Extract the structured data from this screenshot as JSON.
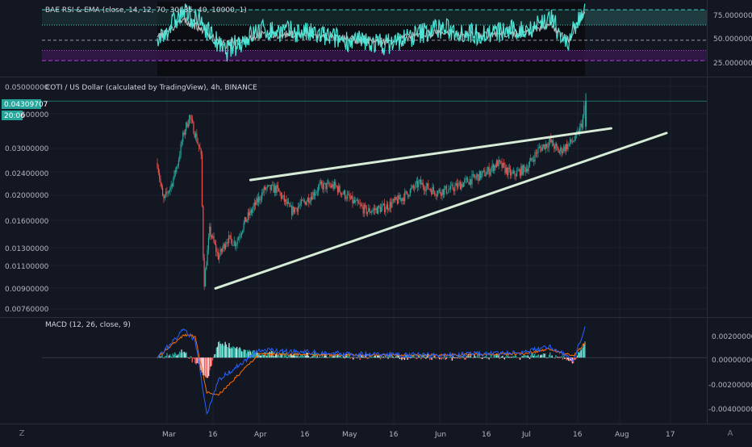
{
  "colors": {
    "background": "#131722",
    "grid": "#1e222d",
    "up": "#26a69a",
    "down": "#ef5350",
    "rsi_line": "#4ee4d6",
    "rsi_ema": "#e8e8e8",
    "rsi_upper_band": "#3bd1c2",
    "rsi_lower_band": "#b040d8",
    "macd_line": "#2962ff",
    "signal_line": "#ff6d00",
    "trendline": "#d6ecd6",
    "price_label_bg": "#26a69a"
  },
  "rsi_pane": {
    "title": "BAE RSI & EMA (close, 14, 12, 70, 30, 35, 40, 10000, 1)",
    "y_ticks": [
      "75.00000000",
      "50.00000000",
      "25.00000000"
    ],
    "levels": [
      80,
      65,
      50,
      40,
      30
    ]
  },
  "price_pane": {
    "title": "COTI / US Dollar (calculated by TradingView), 4h, BINANCE",
    "y_ticks": [
      "0.05000000",
      "0.03600000",
      "0.03000000",
      "0.02400000",
      "0.02000000",
      "0.01600000",
      "0.01300000",
      "0.01100000",
      "0.00900000",
      "0.00760000"
    ],
    "last_price": "0.04309707",
    "countdown": "20:06"
  },
  "macd_pane": {
    "title": "MACD (12, 26, close, 9)",
    "y_ticks": [
      "0.00200000",
      "0.00000000",
      "-0.00200000",
      "-0.00400000"
    ]
  },
  "x_axis": {
    "labels": [
      "Mar",
      "16",
      "Apr",
      "16",
      "May",
      "16",
      "Jun",
      "16",
      "Jul",
      "16",
      "Aug",
      "17"
    ]
  },
  "toolbar": {
    "zoom_icon": "Z",
    "auto_scale": "A"
  },
  "chart_data": [
    {
      "type": "candlestick",
      "title": "COTI / US Dollar (calculated by TradingView), 4h, BINANCE",
      "scale": "log",
      "ylim": [
        0.0074,
        0.052
      ],
      "x_range": [
        "2020-02-26",
        "2020-08-19"
      ],
      "price_path": [
        [
          "2020-02-26",
          0.026
        ],
        [
          "2020-02-28",
          0.019
        ],
        [
          "2020-03-02",
          0.022
        ],
        [
          "2020-03-04",
          0.026
        ],
        [
          "2020-03-06",
          0.033
        ],
        [
          "2020-03-08",
          0.038
        ],
        [
          "2020-03-10",
          0.033
        ],
        [
          "2020-03-12",
          0.028
        ],
        [
          "2020-03-13",
          0.0095
        ],
        [
          "2020-03-15",
          0.015
        ],
        [
          "2020-03-18",
          0.012
        ],
        [
          "2020-03-21",
          0.014
        ],
        [
          "2020-03-24",
          0.0135
        ],
        [
          "2020-03-27",
          0.016
        ],
        [
          "2020-03-30",
          0.018
        ],
        [
          "2020-04-03",
          0.021
        ],
        [
          "2020-04-07",
          0.021
        ],
        [
          "2020-04-12",
          0.0175
        ],
        [
          "2020-04-17",
          0.019
        ],
        [
          "2020-04-22",
          0.0215
        ],
        [
          "2020-04-27",
          0.0215
        ],
        [
          "2020-05-03",
          0.019
        ],
        [
          "2020-05-08",
          0.0175
        ],
        [
          "2020-05-14",
          0.018
        ],
        [
          "2020-05-20",
          0.0195
        ],
        [
          "2020-05-26",
          0.022
        ],
        [
          "2020-06-01",
          0.0205
        ],
        [
          "2020-06-06",
          0.021
        ],
        [
          "2020-06-12",
          0.0225
        ],
        [
          "2020-06-18",
          0.024
        ],
        [
          "2020-06-22",
          0.026
        ],
        [
          "2020-06-27",
          0.0235
        ],
        [
          "2020-07-02",
          0.025
        ],
        [
          "2020-07-06",
          0.029
        ],
        [
          "2020-07-10",
          0.031
        ],
        [
          "2020-07-13",
          0.0285
        ],
        [
          "2020-07-16",
          0.03
        ],
        [
          "2020-07-19",
          0.032
        ],
        [
          "2020-07-21",
          0.036
        ],
        [
          "2020-07-22",
          0.04309707
        ]
      ],
      "annotations": [
        {
          "type": "trendline",
          "from": [
            "2020-03-29",
            0.0226
          ],
          "to": [
            "2020-07-31",
            0.0345
          ]
        },
        {
          "type": "trendline",
          "from": [
            "2020-03-17",
            0.0093
          ],
          "to": [
            "2020-08-19",
            0.0332
          ]
        }
      ]
    },
    {
      "type": "line",
      "title": "BAE RSI & EMA (close, 14, 12, 70, 30, 35, 40, 10000, 1)",
      "ylim": [
        15,
        88
      ],
      "x": [
        "2020-02-26",
        "2020-03-06",
        "2020-03-13",
        "2020-03-20",
        "2020-04-01",
        "2020-04-15",
        "2020-05-01",
        "2020-05-15",
        "2020-06-01",
        "2020-06-15",
        "2020-07-01",
        "2020-07-10",
        "2020-07-16",
        "2020-07-22"
      ],
      "series": [
        {
          "values": [
            50,
            78,
            65,
            38,
            60,
            58,
            50,
            46,
            62,
            56,
            60,
            72,
            45,
            84
          ]
        },
        {
          "values": [
            52,
            70,
            60,
            45,
            55,
            56,
            51,
            49,
            58,
            55,
            57,
            66,
            50,
            76
          ]
        }
      ]
    },
    {
      "type": "line",
      "title": "MACD (12, 26, close, 9)",
      "ylim": [
        -0.0051,
        0.0028
      ],
      "x": [
        "2020-02-26",
        "2020-03-06",
        "2020-03-10",
        "2020-03-14",
        "2020-03-18",
        "2020-04-01",
        "2020-05-01",
        "2020-06-01",
        "2020-07-01",
        "2020-07-10",
        "2020-07-18",
        "2020-07-22"
      ],
      "series": [
        {
          "values": [
            0.0,
            0.0022,
            0.0014,
            -0.0045,
            -0.0018,
            0.0006,
            0.0003,
            0.0002,
            0.0004,
            0.0009,
            -0.0002,
            0.0024
          ]
        },
        {
          "values": [
            0.0,
            0.0018,
            0.0017,
            -0.0028,
            -0.003,
            0.0003,
            0.0002,
            0.0002,
            0.0003,
            0.0007,
            0.0001,
            0.0012
          ]
        }
      ]
    }
  ]
}
